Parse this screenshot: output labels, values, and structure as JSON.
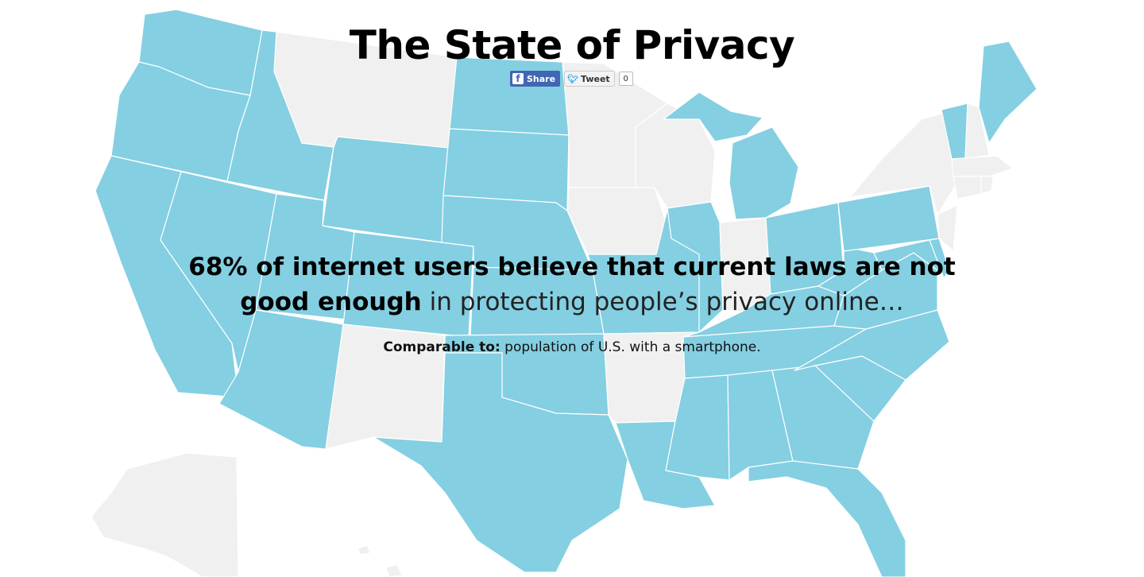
{
  "page": {
    "title": "The State of Privacy"
  },
  "share": {
    "facebook_label": "Share",
    "facebook_icon": "facebook-f-icon",
    "twitter_label": "Tweet",
    "twitter_icon": "twitter-bird-icon",
    "tweet_count": "0"
  },
  "headline": {
    "bold_text": "68% of internet users believe that current laws are not good enough",
    "light_text": " in protecting people’s privacy online…"
  },
  "comparison": {
    "label": "Comparable to:",
    "text": " population of U.S. with a smartphone."
  },
  "colors": {
    "highlight": "#84cfe2",
    "neutral": "#f0f0f0"
  },
  "map": {
    "highlighted_states": [
      "WA",
      "OR",
      "CA",
      "NV",
      "ID",
      "UT",
      "AZ",
      "WY",
      "CO",
      "ND",
      "SD",
      "NE",
      "KS",
      "OK",
      "TX",
      "MO",
      "IL",
      "MI",
      "OH",
      "KY",
      "TN",
      "MS",
      "AL",
      "GA",
      "FL",
      "SC",
      "NC",
      "VA",
      "WV",
      "PA",
      "DE",
      "MD",
      "VT",
      "ME",
      "LA"
    ],
    "neutral_states": [
      "MT",
      "NM",
      "MN",
      "IA",
      "WI",
      "IN",
      "AR",
      "NY",
      "NH",
      "MA",
      "CT",
      "RI",
      "NJ",
      "AK"
    ]
  }
}
